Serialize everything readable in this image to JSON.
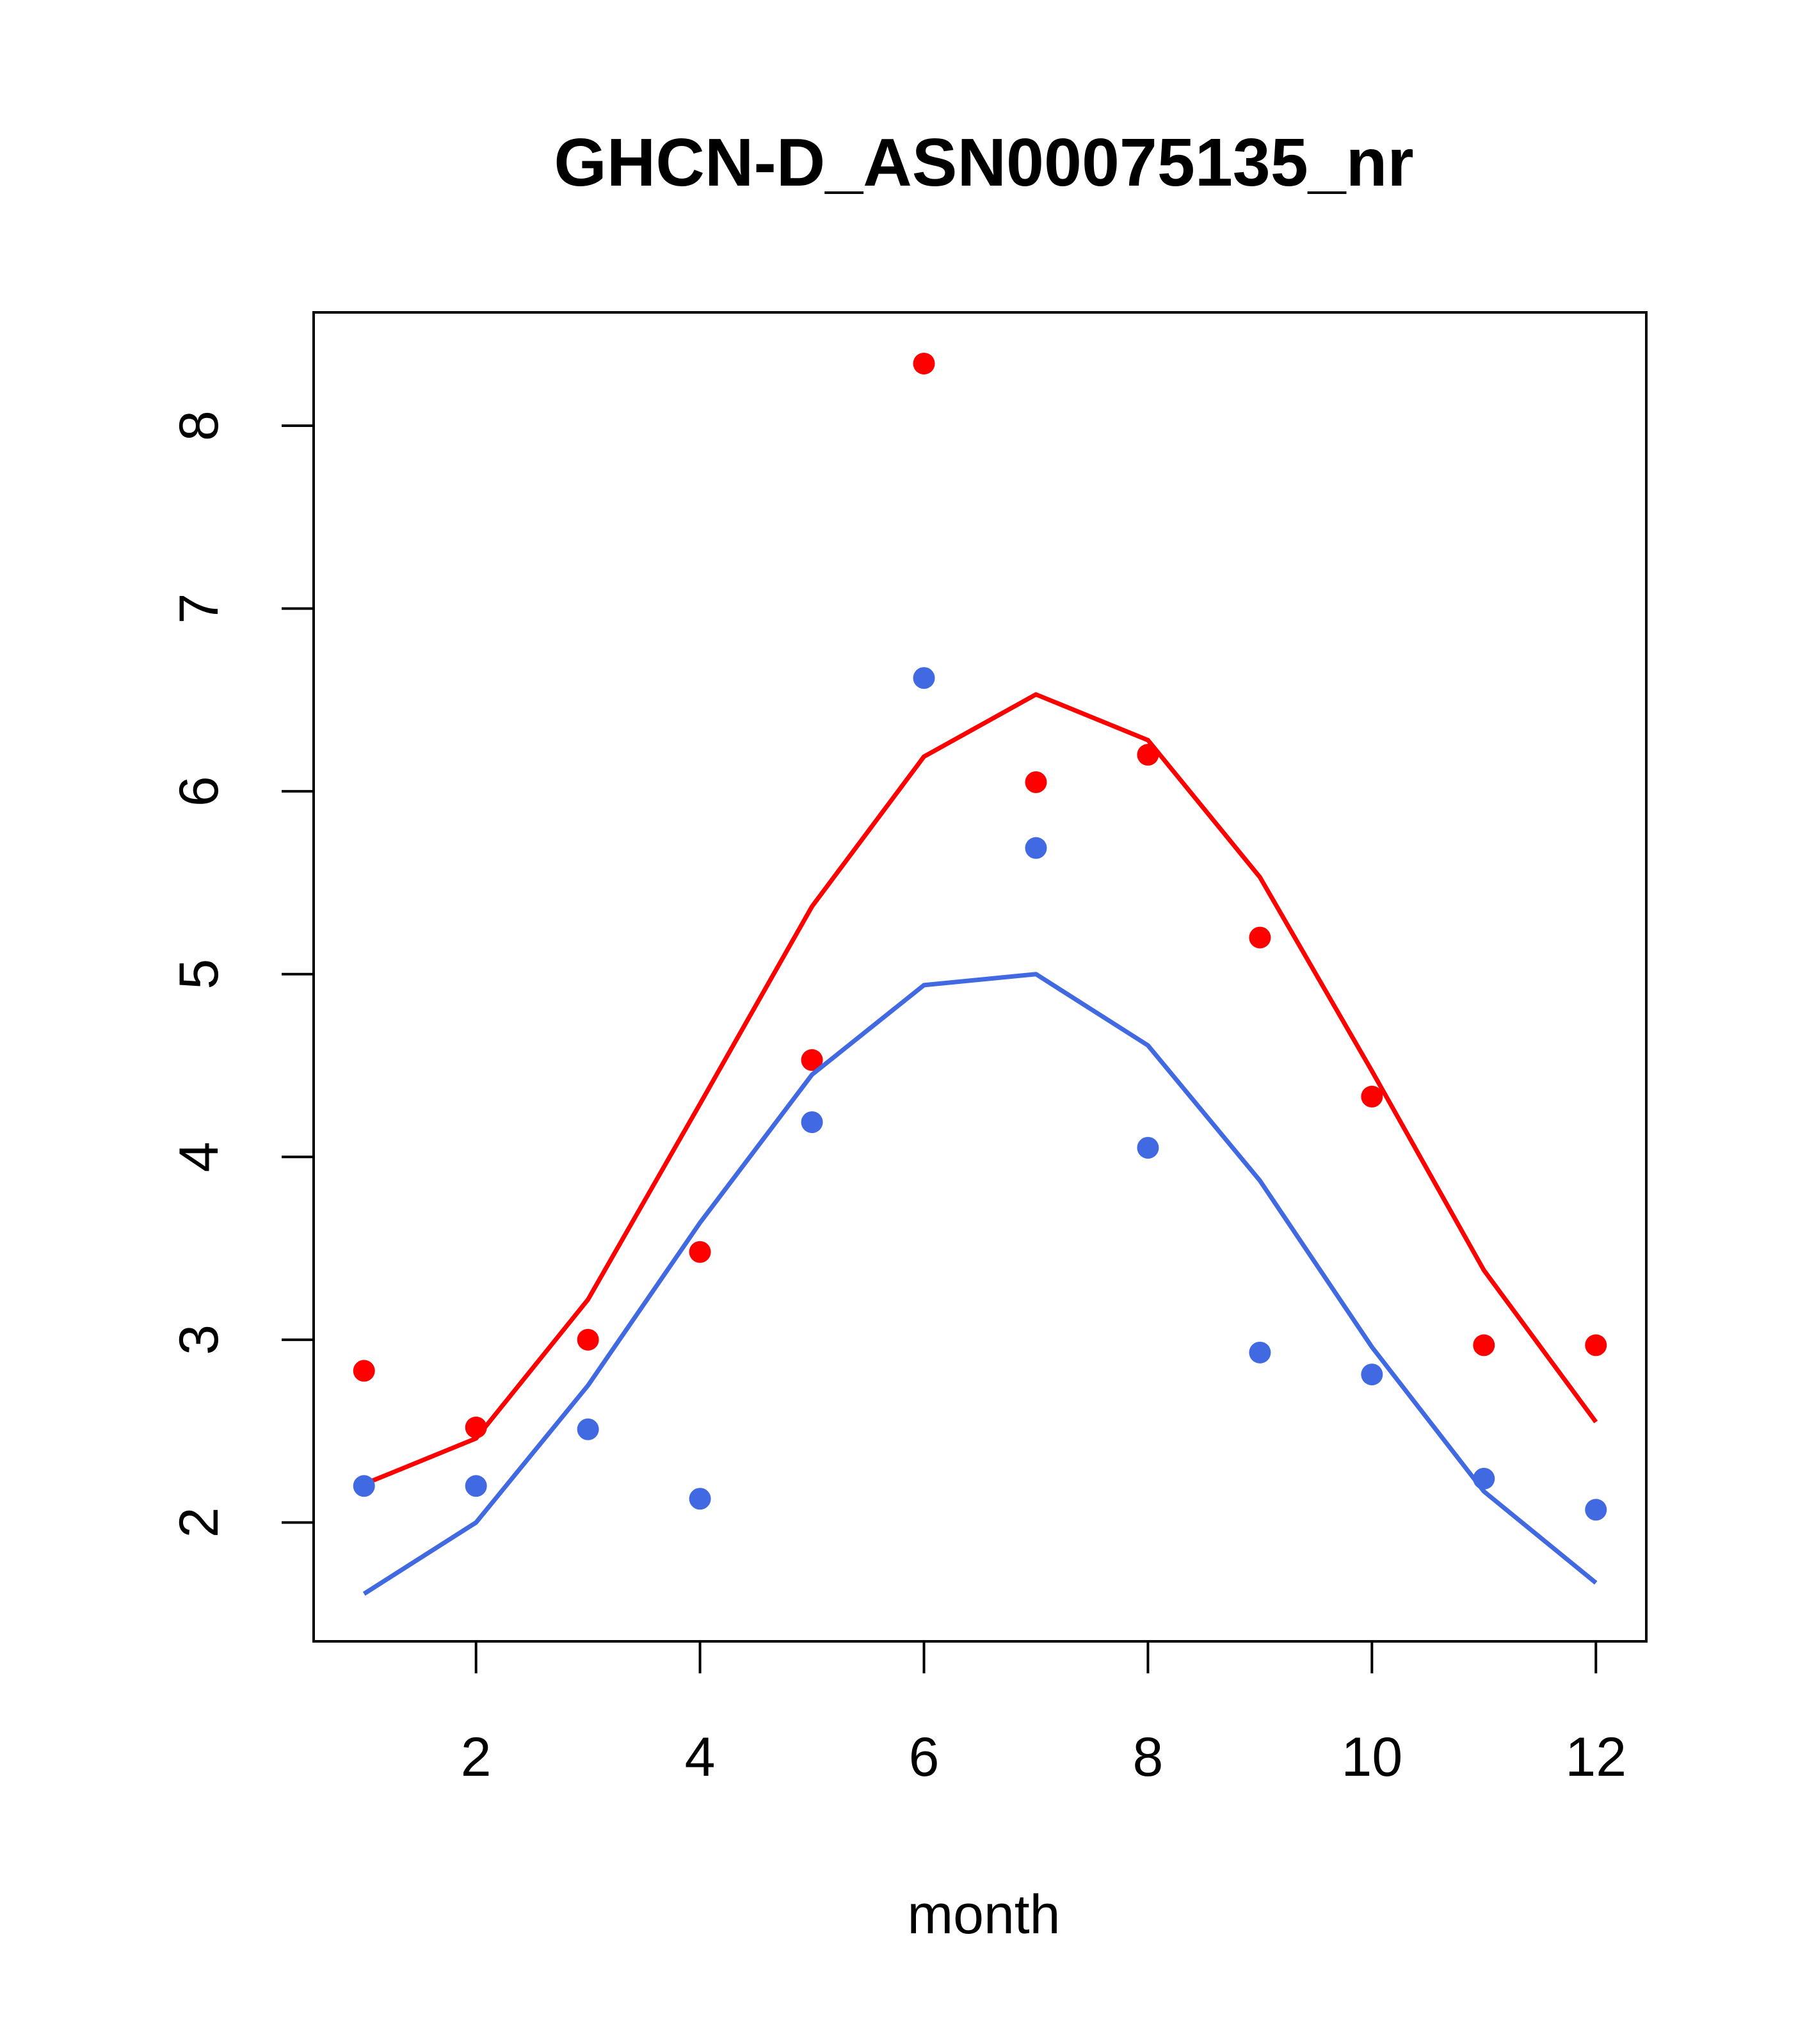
{
  "chart_data": {
    "type": "line",
    "title": "GHCN-D_ASN00075135_nr",
    "xlabel": "month",
    "ylabel": "",
    "xlim": [
      0.55,
      12.45
    ],
    "ylim": [
      1.35,
      8.62
    ],
    "x_ticks": [
      2,
      4,
      6,
      8,
      10,
      12
    ],
    "y_ticks": [
      2,
      3,
      4,
      5,
      6,
      7,
      8
    ],
    "x_tick_labels": [
      "2",
      "4",
      "6",
      "8",
      "10",
      "12"
    ],
    "y_tick_labels": [
      "2",
      "3",
      "4",
      "5",
      "6",
      "7",
      "8"
    ],
    "grid": false,
    "legend": "none",
    "x": [
      1,
      2,
      3,
      4,
      5,
      6,
      7,
      8,
      9,
      10,
      11,
      12
    ],
    "series": [
      {
        "color": "#ff0000",
        "points": [
          2.83,
          2.52,
          3.0,
          3.48,
          4.53,
          8.34,
          6.05,
          6.2,
          5.2,
          4.33,
          2.97,
          2.97
        ],
        "line": [
          2.21,
          2.46,
          3.22,
          4.29,
          5.37,
          6.19,
          6.53,
          6.28,
          5.53,
          4.47,
          3.38,
          2.55
        ]
      },
      {
        "color": "#4169e1",
        "points": [
          2.2,
          2.2,
          2.51,
          2.13,
          4.19,
          6.62,
          5.69,
          4.05,
          2.93,
          2.81,
          2.24,
          2.07
        ],
        "line": [
          1.61,
          2.0,
          2.75,
          3.64,
          4.45,
          4.94,
          5.0,
          4.61,
          3.87,
          2.96,
          2.17,
          1.67
        ]
      }
    ]
  }
}
